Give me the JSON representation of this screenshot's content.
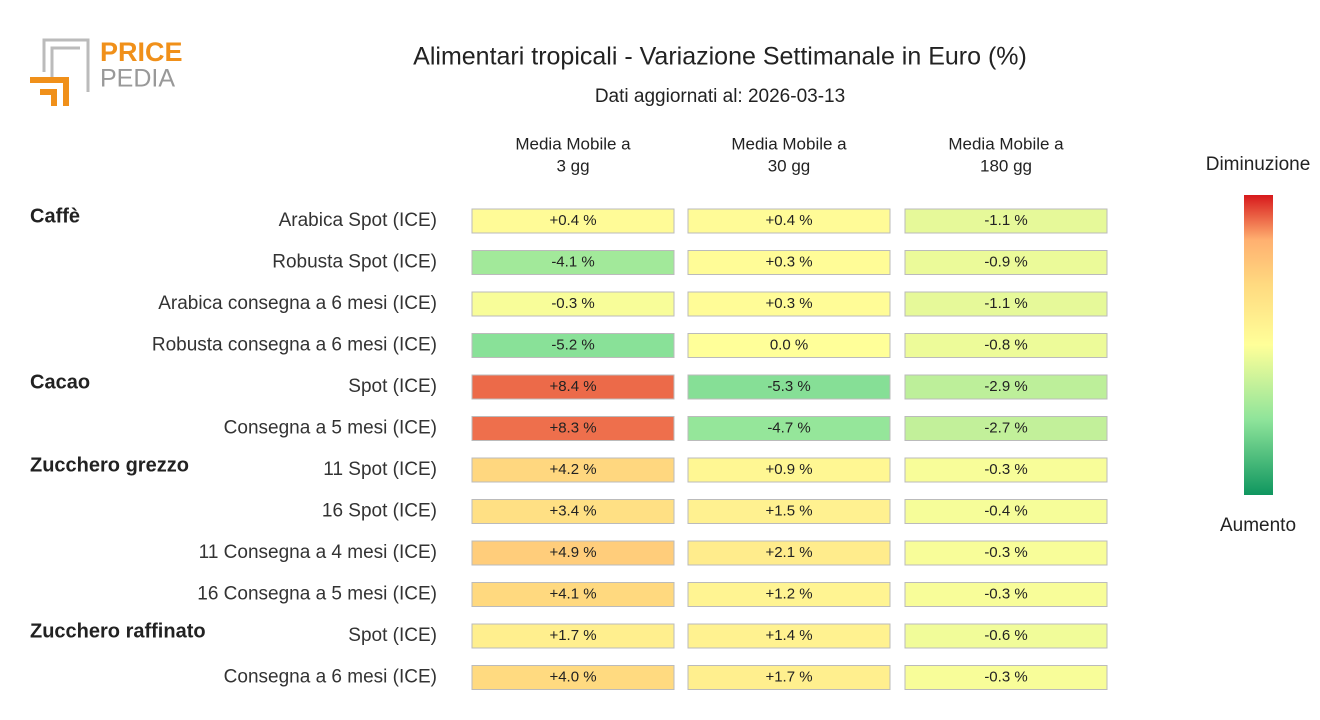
{
  "logo": {
    "top": "PRICE",
    "bottom": "PEDIA"
  },
  "chart_data": {
    "type": "heatmap",
    "title": "Alimentari tropicali - Variazione Settimanale in Euro (%)",
    "subtitle": "Dati aggiornati al: 2026-03-13",
    "columns": [
      [
        "Media Mobile a",
        "3 gg"
      ],
      [
        "Media Mobile a",
        "30 gg"
      ],
      [
        "Media Mobile a",
        "180 gg"
      ]
    ],
    "clim": [
      -10,
      10
    ],
    "legend": {
      "top": "Diminuzione",
      "bottom": "Aumento"
    },
    "groups": [
      {
        "name": "Caffè",
        "rows": [
          "Arabica Spot (ICE)",
          "Robusta Spot (ICE)",
          "Arabica consegna a 6 mesi (ICE)",
          "Robusta consegna a 6 mesi (ICE)"
        ],
        "values": [
          [
            0.4,
            0.4,
            -1.1
          ],
          [
            -4.1,
            0.3,
            -0.9
          ],
          [
            -0.3,
            0.3,
            -1.1
          ],
          [
            -5.2,
            0.0,
            -0.8
          ]
        ],
        "value_labels": [
          [
            "+0.4 %",
            "+0.4 %",
            "-1.1 %"
          ],
          [
            "-4.1 %",
            "+0.3 %",
            "-0.9 %"
          ],
          [
            "-0.3 %",
            "+0.3 %",
            "-1.1 %"
          ],
          [
            "-5.2 %",
            "0.0 %",
            "-0.8 %"
          ]
        ]
      },
      {
        "name": "Cacao",
        "rows": [
          "Spot (ICE)",
          "Consegna a 5 mesi (ICE)"
        ],
        "values": [
          [
            8.4,
            -5.3,
            -2.9
          ],
          [
            8.3,
            -4.7,
            -2.7
          ]
        ],
        "value_labels": [
          [
            "+8.4 %",
            "-5.3 %",
            "-2.9 %"
          ],
          [
            "+8.3 %",
            "-4.7 %",
            "-2.7 %"
          ]
        ]
      },
      {
        "name": "Zucchero grezzo",
        "rows": [
          "11 Spot (ICE)",
          "16 Spot (ICE)",
          "11 Consegna a 4 mesi (ICE)",
          "16 Consegna a 5 mesi (ICE)"
        ],
        "values": [
          [
            4.2,
            0.9,
            -0.3
          ],
          [
            3.4,
            1.5,
            -0.4
          ],
          [
            4.9,
            2.1,
            -0.3
          ],
          [
            4.1,
            1.2,
            -0.3
          ]
        ],
        "value_labels": [
          [
            "+4.2 %",
            "+0.9 %",
            "-0.3 %"
          ],
          [
            "+3.4 %",
            "+1.5 %",
            "-0.4 %"
          ],
          [
            "+4.9 %",
            "+2.1 %",
            "-0.3 %"
          ],
          [
            "+4.1 %",
            "+1.2 %",
            "-0.3 %"
          ]
        ]
      },
      {
        "name": "Zucchero raffinato",
        "rows": [
          "Spot (ICE)",
          "Consegna a 6 mesi (ICE)"
        ],
        "values": [
          [
            1.7,
            1.4,
            -0.6
          ],
          [
            4.0,
            1.7,
            -0.3
          ]
        ],
        "value_labels": [
          [
            "+1.7 %",
            "+1.4 %",
            "-0.6 %"
          ],
          [
            "+4.0 %",
            "+1.7 %",
            "-0.3 %"
          ]
        ]
      }
    ]
  }
}
